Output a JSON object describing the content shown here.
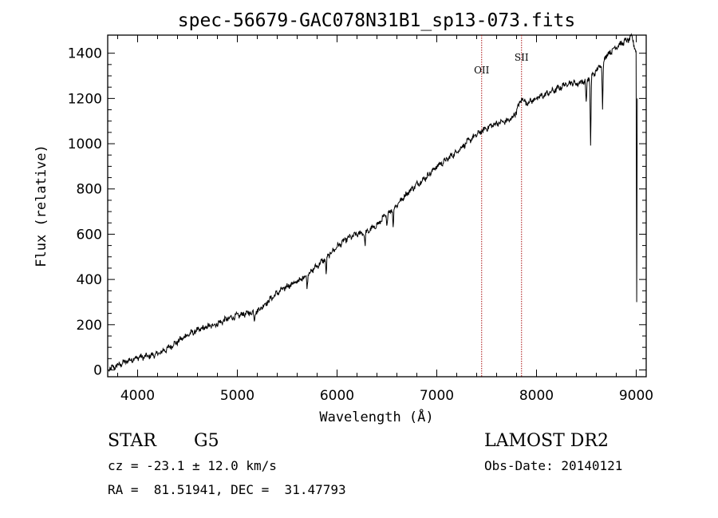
{
  "chart_data": {
    "type": "line",
    "title": "spec-56679-GAC078N31B1_sp13-073.fits",
    "xlabel": "Wavelength (Å)",
    "ylabel": "Flux (relative)",
    "xlim": [
      3700,
      9100
    ],
    "ylim": [
      -30,
      1480
    ],
    "x_ticks": [
      4000,
      5000,
      6000,
      7000,
      8000,
      9000
    ],
    "y_ticks": [
      0,
      200,
      400,
      600,
      800,
      1000,
      1200,
      1400
    ],
    "grid": false,
    "line_color": "#000000",
    "marker_color": "#aa1111",
    "spectrum_anchors": [
      [
        3700,
        0
      ],
      [
        3800,
        20
      ],
      [
        3900,
        40
      ],
      [
        4000,
        55
      ],
      [
        4100,
        60
      ],
      [
        4200,
        70
      ],
      [
        4300,
        95
      ],
      [
        4400,
        125
      ],
      [
        4500,
        155
      ],
      [
        4600,
        175
      ],
      [
        4700,
        190
      ],
      [
        4800,
        205
      ],
      [
        4900,
        225
      ],
      [
        5000,
        240
      ],
      [
        5100,
        250
      ],
      [
        5200,
        260
      ],
      [
        5300,
        300
      ],
      [
        5400,
        340
      ],
      [
        5500,
        370
      ],
      [
        5600,
        390
      ],
      [
        5700,
        420
      ],
      [
        5800,
        460
      ],
      [
        5900,
        500
      ],
      [
        6000,
        545
      ],
      [
        6100,
        580
      ],
      [
        6200,
        600
      ],
      [
        6300,
        610
      ],
      [
        6400,
        640
      ],
      [
        6500,
        690
      ],
      [
        6600,
        730
      ],
      [
        6700,
        780
      ],
      [
        6800,
        820
      ],
      [
        6900,
        855
      ],
      [
        7000,
        900
      ],
      [
        7100,
        930
      ],
      [
        7200,
        965
      ],
      [
        7300,
        1005
      ],
      [
        7400,
        1040
      ],
      [
        7500,
        1070
      ],
      [
        7600,
        1090
      ],
      [
        7700,
        1100
      ],
      [
        7750,
        1110
      ],
      [
        7800,
        1145
      ],
      [
        7850,
        1200
      ],
      [
        7900,
        1180
      ],
      [
        7950,
        1190
      ],
      [
        8000,
        1200
      ],
      [
        8100,
        1220
      ],
      [
        8200,
        1240
      ],
      [
        8300,
        1265
      ],
      [
        8350,
        1270
      ],
      [
        8400,
        1265
      ],
      [
        8500,
        1280
      ],
      [
        8600,
        1320
      ],
      [
        8700,
        1390
      ],
      [
        8800,
        1430
      ],
      [
        8900,
        1455
      ],
      [
        8960,
        1470
      ],
      [
        9000,
        1400
      ]
    ],
    "absorption_features": [
      {
        "x": 5170,
        "depth": 40
      },
      {
        "x": 5700,
        "depth": 50
      },
      {
        "x": 5890,
        "depth": 80
      },
      {
        "x": 6280,
        "depth": 60
      },
      {
        "x": 6500,
        "depth": 60
      },
      {
        "x": 6563,
        "depth": 80
      },
      {
        "x": 8498,
        "depth": 110
      },
      {
        "x": 8542,
        "depth": 300
      },
      {
        "x": 8662,
        "depth": 210
      }
    ],
    "emission_line_markers": [
      {
        "label": "OII",
        "x": 7450
      },
      {
        "label": "SII",
        "x": 7850
      }
    ]
  },
  "info": {
    "object_class": "STAR",
    "subclass": "G5",
    "survey": "LAMOST DR2",
    "cz_line": "cz = -23.1 ± 12.0 km/s",
    "obs_date_line": "Obs-Date: 20140121",
    "coords_line": "RA =  81.51941, DEC =  31.47793"
  }
}
